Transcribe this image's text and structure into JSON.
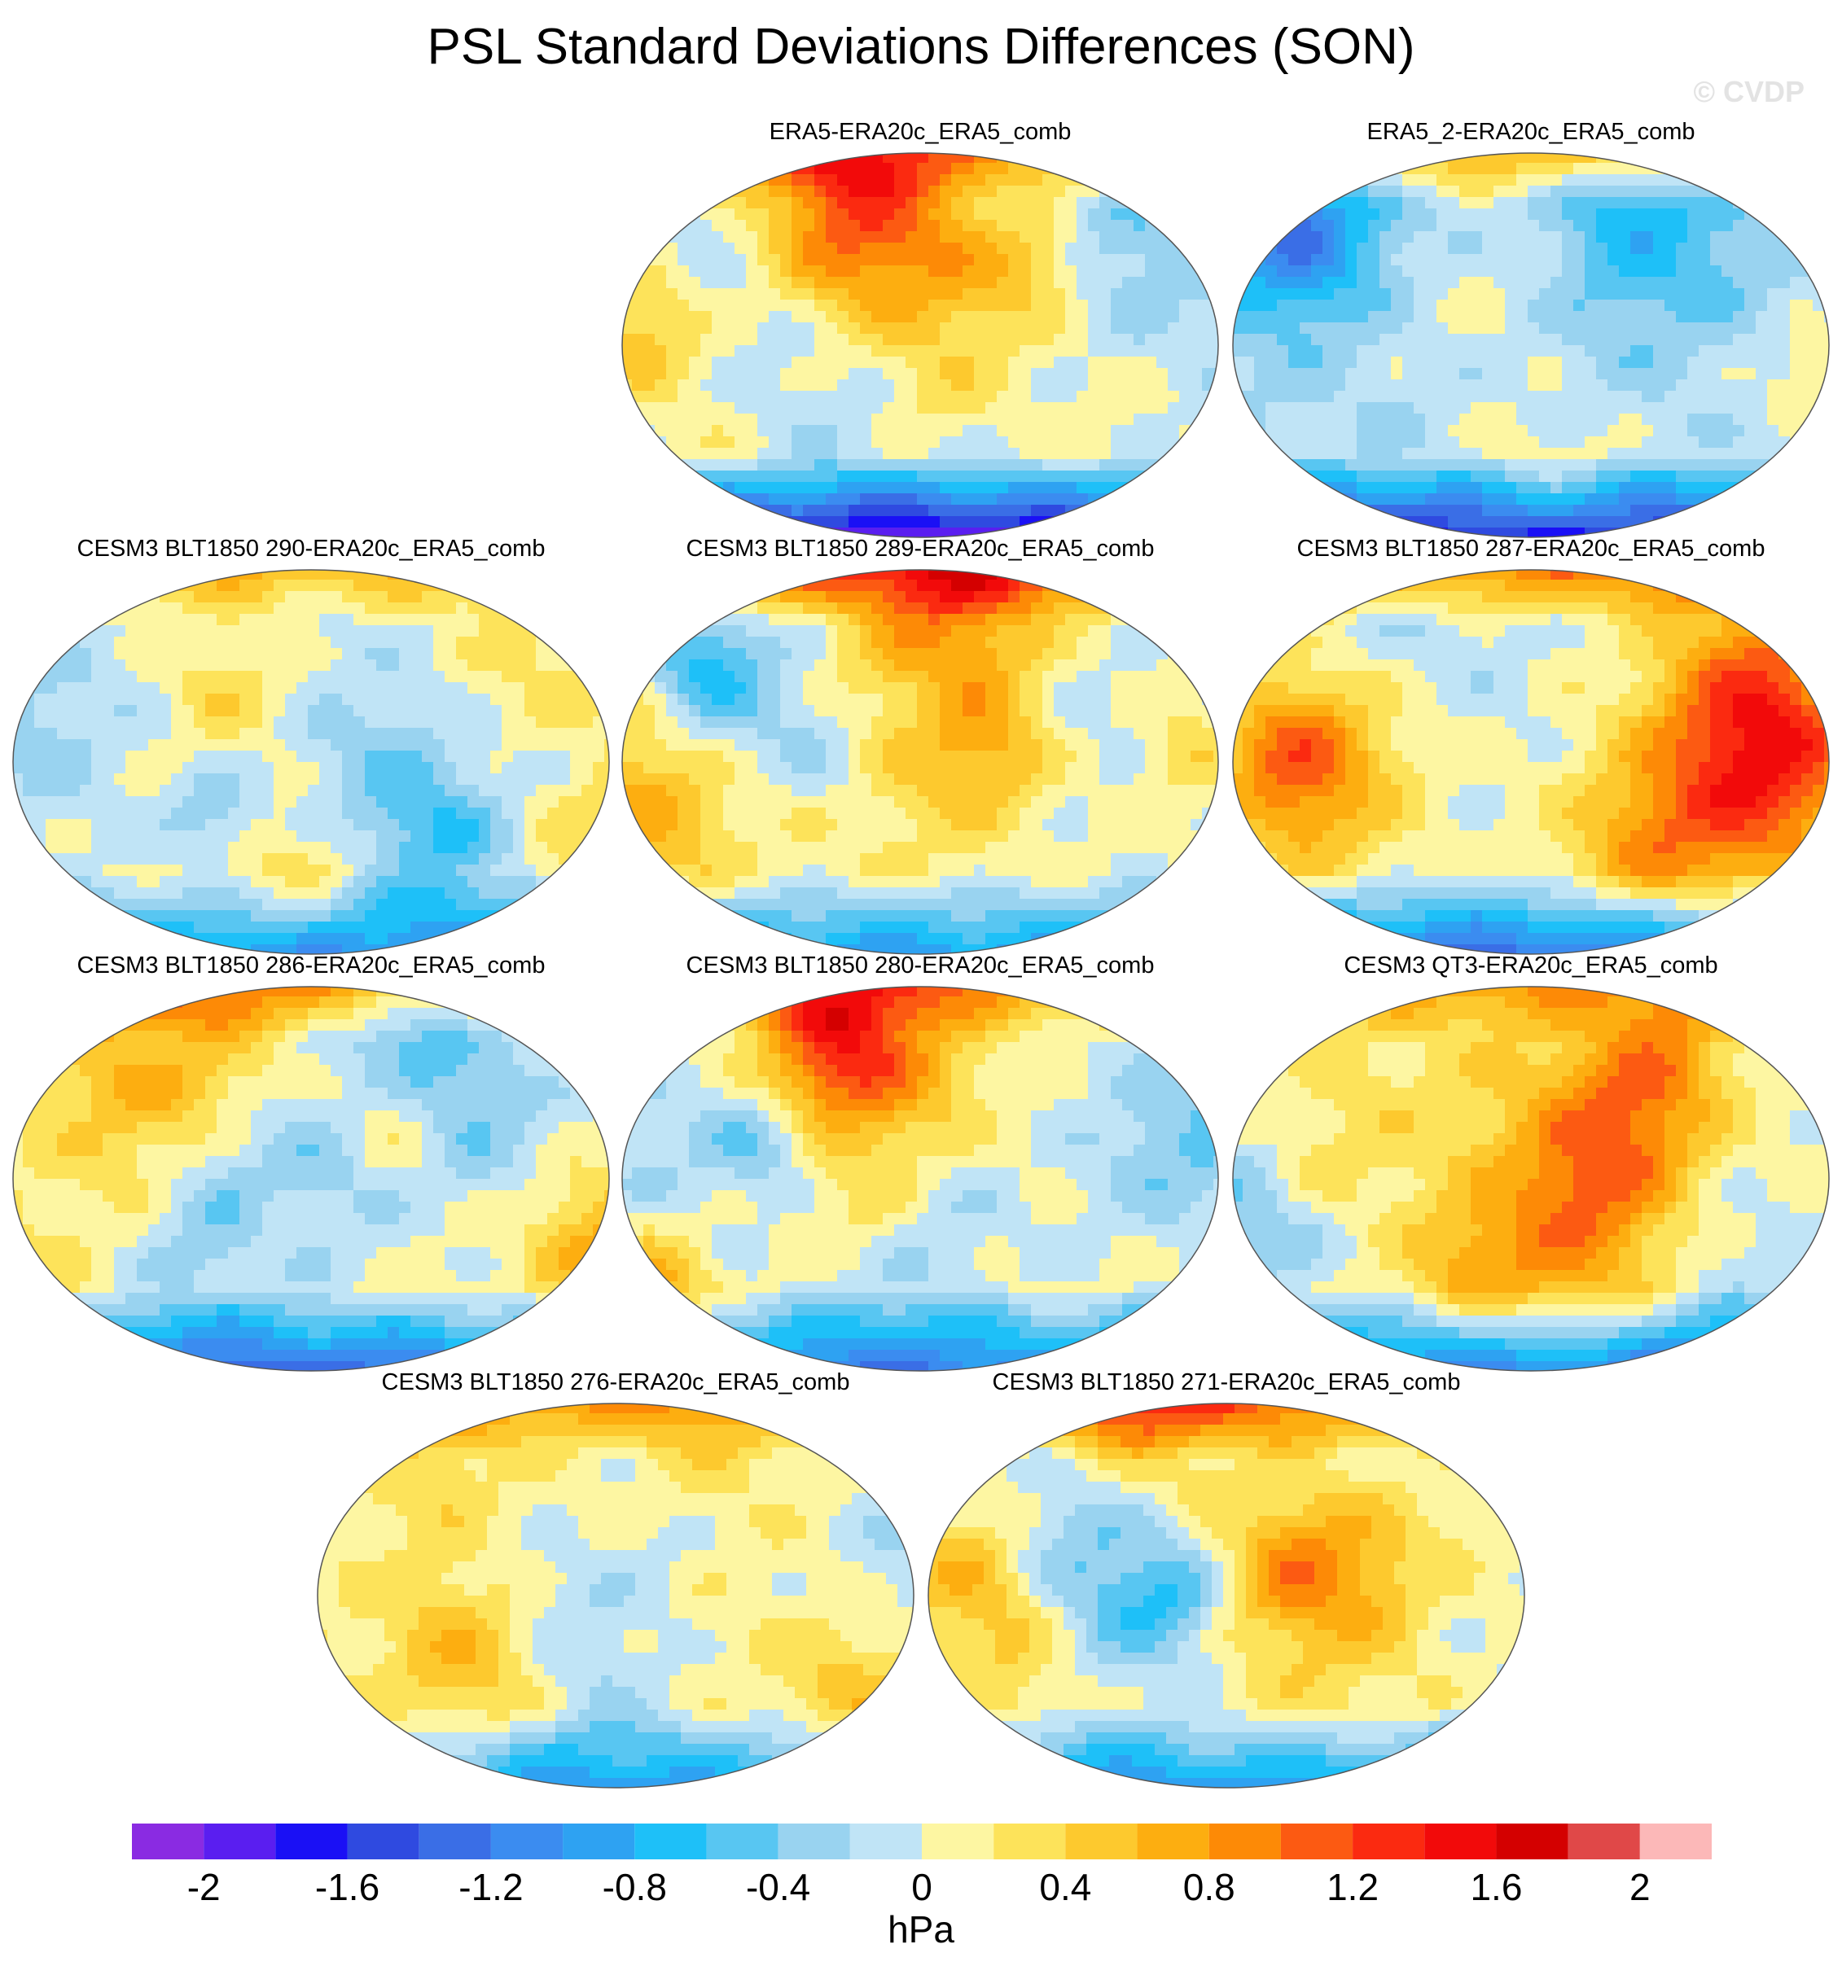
{
  "figure": {
    "title": "PSL Standard Deviations Differences (SON)",
    "watermark": "© CVDP",
    "units": "hPa"
  },
  "panels": [
    {
      "title": "ERA5-ERA20c_ERA5_comb",
      "seed": 1,
      "south": -1.8,
      "north": 0.8,
      "mid": -0.4
    },
    {
      "title": "ERA5_2-ERA20c_ERA5_comb",
      "seed": 2,
      "south": -1.6,
      "north": 0.9,
      "mid": -0.4
    },
    {
      "title": "CESM3 BLT1850 290-ERA20c_ERA5_comb",
      "seed": 3,
      "south": -1.1,
      "north": 0.6,
      "mid": 0.1
    },
    {
      "title": "CESM3 BLT1850 289-ERA20c_ERA5_comb",
      "seed": 4,
      "south": -1.0,
      "north": 1.1,
      "mid": 0.1
    },
    {
      "title": "CESM3 BLT1850 287-ERA20c_ERA5_comb",
      "seed": 5,
      "south": -1.3,
      "north": 1.0,
      "mid": 0.0
    },
    {
      "title": "CESM3 BLT1850 286-ERA20c_ERA5_comb",
      "seed": 6,
      "south": -1.4,
      "north": 0.8,
      "mid": 0.2
    },
    {
      "title": "CESM3 BLT1850 280-ERA20c_ERA5_comb",
      "seed": 7,
      "south": -1.2,
      "north": 0.7,
      "mid": 0.1
    },
    {
      "title": "CESM3 QT3-ERA20c_ERA5_comb",
      "seed": 8,
      "south": -1.3,
      "north": 0.6,
      "mid": 0.2
    },
    {
      "title": "CESM3 BLT1850 276-ERA20c_ERA5_comb",
      "seed": 9,
      "south": -1.0,
      "north": 0.7,
      "mid": 0.3
    },
    {
      "title": "CESM3 BLT1850 271-ERA20c_ERA5_comb",
      "seed": 10,
      "south": -1.1,
      "north": 1.0,
      "mid": 0.3
    }
  ],
  "colorbar": {
    "levels": [
      -2.0,
      -1.8,
      -1.6,
      -1.4,
      -1.2,
      -1.0,
      -0.8,
      -0.6,
      -0.4,
      -0.2,
      0.0,
      0.2,
      0.4,
      0.6,
      0.8,
      1.0,
      1.2,
      1.4,
      1.6,
      1.8,
      2.0
    ],
    "colors": [
      "#8a2be2",
      "#5a1ef0",
      "#1a10f5",
      "#2f4ae0",
      "#3a6ee6",
      "#3b8cf0",
      "#2ea2f2",
      "#1ec0f8",
      "#58c6f2",
      "#99d3f0",
      "#c0e4f6",
      "#fdf6a2",
      "#fde35a",
      "#fdc92e",
      "#fdae10",
      "#fd8a06",
      "#fc5a12",
      "#fb2a10",
      "#f20a0a",
      "#d40000",
      "#e04848",
      "#fcb8b8"
    ],
    "tick_labels": [
      "-2",
      "-1.6",
      "-1.2",
      "-0.8",
      "-0.4",
      "0",
      "0.4",
      "0.8",
      "1.2",
      "1.6",
      "2"
    ],
    "tick_values": [
      -2.0,
      -1.6,
      -1.2,
      -0.8,
      -0.4,
      0.0,
      0.4,
      0.8,
      1.2,
      1.6,
      2.0
    ]
  }
}
